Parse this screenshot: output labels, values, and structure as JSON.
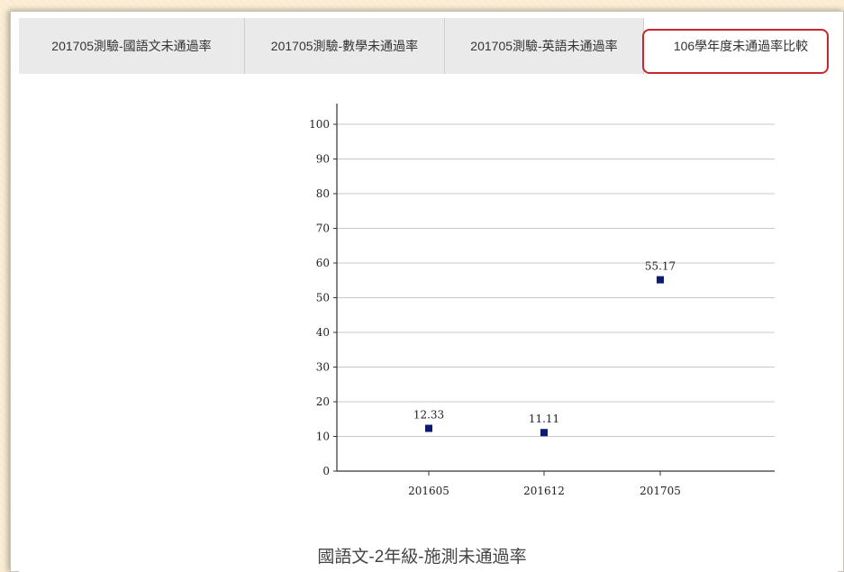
{
  "tabs": [
    {
      "label": "201705測驗-國語文未通過率",
      "active": false
    },
    {
      "label": "201705測驗-數學未通過率",
      "active": false
    },
    {
      "label": "201705測驗-英語未通過率",
      "active": false
    },
    {
      "label": "106學年度未通過率比較",
      "active": true
    }
  ],
  "colors": {
    "marker": "#0b1a73",
    "grid": "#c8c8c8",
    "axis": "#333333",
    "active_outline": "#c8282d"
  },
  "chart_data": {
    "type": "scatter",
    "title": "國語文-2年級-施測未通過率",
    "xlabel": "",
    "ylabel": "",
    "categories": [
      "201605",
      "201612",
      "201705"
    ],
    "values": [
      12.33,
      11.11,
      55.17
    ],
    "data_labels": [
      "12.33",
      "11.11",
      "55.17"
    ],
    "ylim": [
      0,
      100
    ],
    "yticks": [
      0,
      10,
      20,
      30,
      40,
      50,
      60,
      70,
      80,
      90,
      100
    ],
    "grid": true,
    "legend": "none"
  }
}
